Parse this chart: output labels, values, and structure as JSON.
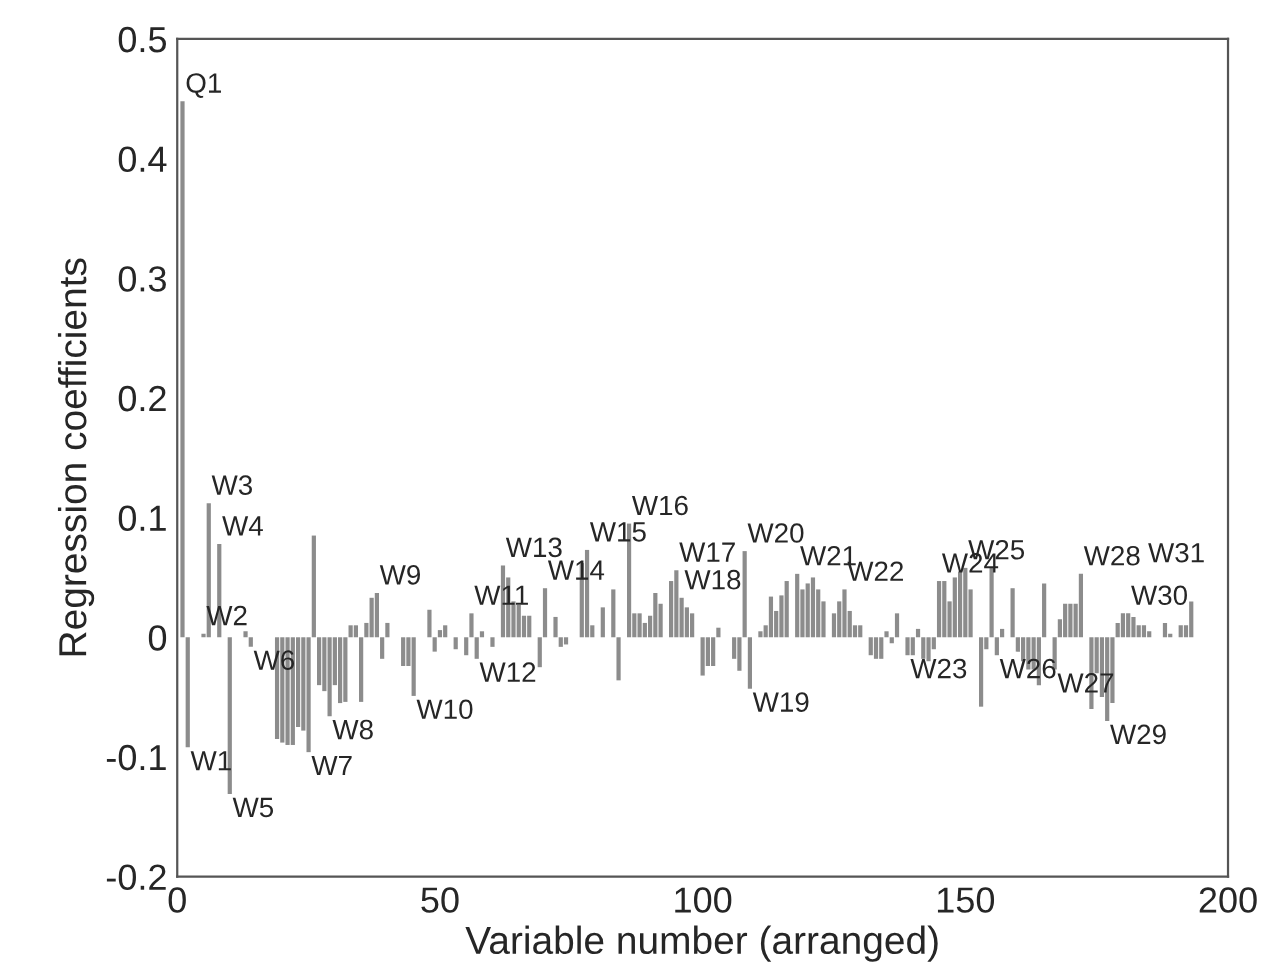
{
  "chart_data": {
    "type": "bar",
    "xlabel": "Variable number (arranged)",
    "ylabel": "Regression coefficients",
    "x": [
      1,
      2,
      5,
      6,
      8,
      10,
      13,
      14,
      19,
      20,
      21,
      22,
      23,
      24,
      25,
      26,
      27,
      28,
      29,
      30,
      31,
      32,
      33,
      34,
      35,
      36,
      37,
      38,
      39,
      40,
      43,
      44,
      45,
      48,
      49,
      50,
      51,
      53,
      55,
      56,
      57,
      58,
      60,
      62,
      63,
      64,
      65,
      66,
      67,
      69,
      70,
      72,
      73,
      74,
      77,
      78,
      79,
      81,
      83,
      84,
      86,
      87,
      88,
      89,
      90,
      91,
      92,
      94,
      95,
      96,
      97,
      98,
      100,
      101,
      102,
      103,
      106,
      107,
      108,
      109,
      111,
      112,
      113,
      114,
      115,
      116,
      118,
      119,
      120,
      121,
      122,
      123,
      125,
      126,
      127,
      128,
      129,
      130,
      132,
      133,
      134,
      135,
      136,
      137,
      139,
      140,
      141,
      142,
      143,
      144,
      145,
      146,
      147,
      148,
      149,
      150,
      151,
      153,
      154,
      155,
      156,
      157,
      159,
      160,
      161,
      162,
      163,
      164,
      165,
      167,
      168,
      169,
      170,
      171,
      172,
      174,
      175,
      176,
      177,
      178,
      179,
      180,
      181,
      182,
      183,
      184,
      185,
      188,
      189,
      191,
      192,
      193
    ],
    "values": [
      0.448,
      -0.092,
      0.003,
      0.112,
      0.078,
      -0.131,
      0.005,
      -0.008,
      -0.085,
      -0.088,
      -0.09,
      -0.09,
      -0.075,
      -0.078,
      -0.096,
      0.085,
      -0.04,
      -0.045,
      -0.066,
      -0.04,
      -0.055,
      -0.054,
      0.01,
      0.01,
      -0.054,
      0.012,
      0.033,
      0.037,
      -0.018,
      0.012,
      -0.024,
      -0.024,
      -0.049,
      0.023,
      -0.012,
      0.006,
      0.01,
      -0.01,
      -0.015,
      0.02,
      -0.018,
      0.005,
      -0.008,
      0.06,
      0.05,
      0.03,
      0.027,
      0.018,
      0.018,
      -0.025,
      0.041,
      0.017,
      -0.008,
      -0.006,
      0.062,
      0.073,
      0.01,
      0.025,
      0.04,
      -0.036,
      0.095,
      0.02,
      0.02,
      0.012,
      0.018,
      0.037,
      0.028,
      0.047,
      0.056,
      0.033,
      0.025,
      0.02,
      -0.032,
      -0.024,
      -0.024,
      0.008,
      -0.018,
      -0.028,
      0.072,
      -0.043,
      0.005,
      0.01,
      0.034,
      0.022,
      0.035,
      0.047,
      0.053,
      0.04,
      0.045,
      0.05,
      0.04,
      0.03,
      0.02,
      0.03,
      0.04,
      0.022,
      0.01,
      0.01,
      -0.015,
      -0.018,
      -0.018,
      0.005,
      -0.005,
      0.02,
      -0.015,
      -0.015,
      0.007,
      -0.018,
      -0.02,
      -0.01,
      0.047,
      0.047,
      0.03,
      0.05,
      0.055,
      0.058,
      0.04,
      -0.058,
      -0.01,
      0.058,
      -0.015,
      0.007,
      0.041,
      -0.012,
      -0.02,
      -0.027,
      -0.027,
      -0.04,
      0.045,
      -0.027,
      0.015,
      0.028,
      0.028,
      0.028,
      0.053,
      -0.06,
      -0.03,
      -0.05,
      -0.07,
      -0.055,
      0.012,
      0.02,
      0.02,
      0.017,
      0.01,
      0.01,
      0.005,
      0.012,
      0.003,
      0.01,
      0.01,
      0.03
    ],
    "color": "#8c8c8c",
    "xlim": [
      0,
      200
    ],
    "xticks": [
      0,
      50,
      100,
      150,
      200
    ],
    "ylim": [
      -0.2,
      0.5
    ],
    "yticks": [
      -0.2,
      -0.1,
      0,
      0.1,
      0.2,
      0.3,
      0.4,
      0.5
    ],
    "grid": false,
    "legend": false,
    "annotations": [
      {
        "text": "Q1",
        "x": 1,
        "y": 0.448
      },
      {
        "text": "W1",
        "x": 2,
        "y": -0.092
      },
      {
        "text": "W2",
        "x": 5,
        "y": 0.003
      },
      {
        "text": "W3",
        "x": 6,
        "y": 0.112
      },
      {
        "text": "W4",
        "x": 8,
        "y": 0.078
      },
      {
        "text": "W5",
        "x": 10,
        "y": -0.131
      },
      {
        "text": "W6",
        "x": 14,
        "y": -0.008
      },
      {
        "text": "W7",
        "x": 25,
        "y": -0.096
      },
      {
        "text": "W8",
        "x": 29,
        "y": -0.066
      },
      {
        "text": "W9",
        "x": 38,
        "y": 0.037
      },
      {
        "text": "W10",
        "x": 45,
        "y": -0.049
      },
      {
        "text": "W11",
        "x": 56,
        "y": 0.02
      },
      {
        "text": "W12",
        "x": 57,
        "y": -0.018
      },
      {
        "text": "W13",
        "x": 62,
        "y": 0.06
      },
      {
        "text": "W14",
        "x": 70,
        "y": 0.041
      },
      {
        "text": "W15",
        "x": 78,
        "y": 0.073
      },
      {
        "text": "W16",
        "x": 86,
        "y": 0.095
      },
      {
        "text": "W17",
        "x": 95,
        "y": 0.056
      },
      {
        "text": "W18",
        "x": 96,
        "y": 0.033
      },
      {
        "text": "W19",
        "x": 109,
        "y": -0.043
      },
      {
        "text": "W20",
        "x": 108,
        "y": 0.072
      },
      {
        "text": "W21",
        "x": 118,
        "y": 0.053
      },
      {
        "text": "W22",
        "x": 127,
        "y": 0.04
      },
      {
        "text": "W23",
        "x": 139,
        "y": -0.015
      },
      {
        "text": "W24",
        "x": 145,
        "y": 0.047
      },
      {
        "text": "W25",
        "x": 150,
        "y": 0.058
      },
      {
        "text": "W26",
        "x": 156,
        "y": -0.015
      },
      {
        "text": "W27",
        "x": 167,
        "y": -0.027
      },
      {
        "text": "W28",
        "x": 172,
        "y": 0.053
      },
      {
        "text": "W29",
        "x": 177,
        "y": -0.07
      },
      {
        "text": "W30",
        "x": 181,
        "y": 0.02
      },
      {
        "text": "W31",
        "x": 193,
        "y": 0.03
      }
    ]
  }
}
